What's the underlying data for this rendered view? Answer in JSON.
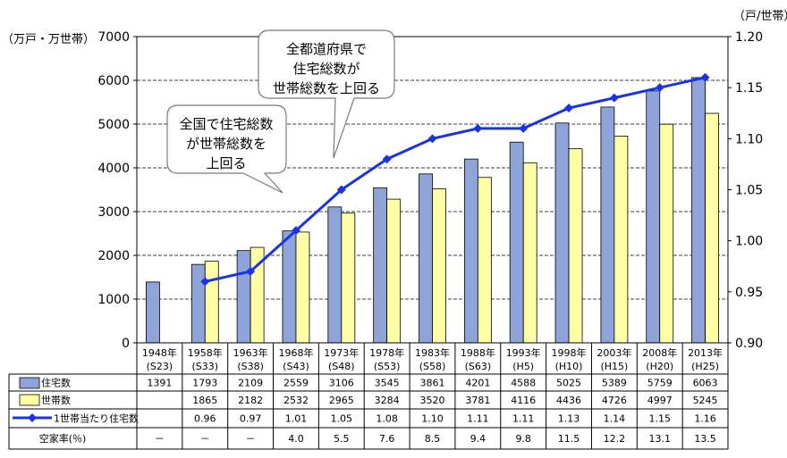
{
  "chart_data": {
    "type": "bar",
    "left_unit": "（万戸・万世帯）",
    "right_unit": "（戸/世帯）",
    "left_ticks": [
      "0",
      "1000",
      "2000",
      "3000",
      "4000",
      "5000",
      "6000",
      "7000"
    ],
    "right_ticks": [
      "0.90",
      "0.95",
      "1.00",
      "1.05",
      "1.10",
      "1.15",
      "1.20"
    ],
    "ylim_left": [
      0,
      7000
    ],
    "ylim_right": [
      0.9,
      1.2
    ],
    "categories": [
      {
        "year": "1948年",
        "era": "(S23)"
      },
      {
        "year": "1958年",
        "era": "(S33)"
      },
      {
        "year": "1963年",
        "era": "(S38)"
      },
      {
        "year": "1968年",
        "era": "(S43)"
      },
      {
        "year": "1973年",
        "era": "(S48)"
      },
      {
        "year": "1978年",
        "era": "(S53)"
      },
      {
        "year": "1983年",
        "era": "(S58)"
      },
      {
        "year": "1988年",
        "era": "(S63)"
      },
      {
        "year": "1993年",
        "era": "(H5)"
      },
      {
        "year": "1998年",
        "era": "(H10)"
      },
      {
        "year": "2003年",
        "era": "(H15)"
      },
      {
        "year": "2008年",
        "era": "(H20)"
      },
      {
        "year": "2013年",
        "era": "(H25)"
      }
    ],
    "series": [
      {
        "name": "住宅数",
        "kind": "bar",
        "color": "#8EA4D8",
        "values": [
          1391,
          1793,
          2109,
          2559,
          3106,
          3545,
          3861,
          4201,
          4588,
          5025,
          5389,
          5759,
          6063
        ]
      },
      {
        "name": "世帯数",
        "kind": "bar",
        "color": "#FFFFA6",
        "values": [
          null,
          1865,
          2182,
          2532,
          2965,
          3284,
          3520,
          3781,
          4116,
          4436,
          4726,
          4997,
          5245
        ]
      },
      {
        "name": "1世帯当たり住宅数",
        "kind": "line",
        "axis": "right",
        "color": "#1A35E0",
        "values": [
          null,
          0.96,
          0.97,
          1.01,
          1.05,
          1.08,
          1.1,
          1.11,
          1.11,
          1.13,
          1.14,
          1.15,
          1.16
        ]
      }
    ],
    "table": {
      "rows": [
        {
          "label": "住宅数",
          "cells": [
            "1391",
            "1793",
            "2109",
            "2559",
            "3106",
            "3545",
            "3861",
            "4201",
            "4588",
            "5025",
            "5389",
            "5759",
            "6063"
          ]
        },
        {
          "label": "世帯数",
          "cells": [
            "",
            "1865",
            "2182",
            "2532",
            "2965",
            "3284",
            "3520",
            "3781",
            "4116",
            "4436",
            "4726",
            "4997",
            "5245"
          ]
        },
        {
          "label": "1世帯当たり住宅数",
          "cells": [
            "",
            "0.96",
            "0.97",
            "1.01",
            "1.05",
            "1.08",
            "1.10",
            "1.11",
            "1.11",
            "1.13",
            "1.14",
            "1.15",
            "1.16"
          ]
        },
        {
          "label": "空家率(％)",
          "cells": [
            "－",
            "－",
            "－",
            "4.0",
            "5.5",
            "7.6",
            "8.5",
            "9.4",
            "9.8",
            "11.5",
            "12.2",
            "13.1",
            "13.5"
          ]
        }
      ]
    },
    "annotations": [
      {
        "lines": [
          "全国で住宅総数",
          "が世帯総数を",
          "上回る"
        ]
      },
      {
        "lines": [
          "全都道府県で",
          "住宅総数が",
          "世帯総数を上回る"
        ]
      }
    ]
  }
}
